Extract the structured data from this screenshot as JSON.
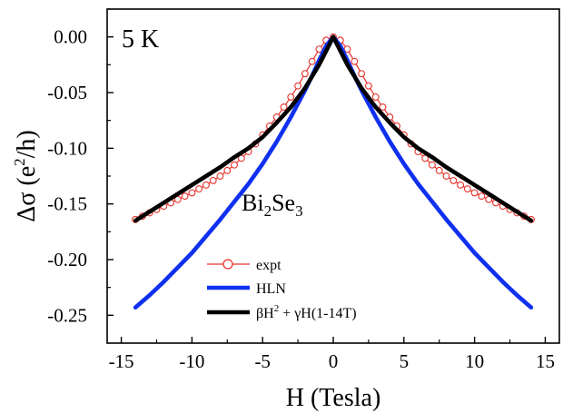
{
  "chart_data": {
    "type": "line",
    "xlabel": "H (Tesla)",
    "ylabel": {
      "prefix": "Δσ (e",
      "sup": "2",
      "suffix": "/h)"
    },
    "xlim": [
      -16,
      16
    ],
    "ylim": [
      -0.275,
      0.025
    ],
    "xticks": [
      -15,
      -10,
      -5,
      0,
      5,
      10,
      15
    ],
    "xtick_labels": [
      "-15",
      "-10",
      "-5",
      "0",
      "5",
      "10",
      "15"
    ],
    "yticks": [
      0.0,
      -0.05,
      -0.1,
      -0.15,
      -0.2,
      -0.25
    ],
    "ytick_labels": [
      "0.00",
      "-0.05",
      "-0.10",
      "-0.15",
      "-0.20",
      "-0.25"
    ],
    "annotations": {
      "temperature": "5 K",
      "material": {
        "a": "Bi",
        "b": "2",
        "c": "Se",
        "d": "3"
      }
    },
    "legend_position": "lower-center",
    "series": [
      {
        "name": "expt",
        "style": "open-circles-line",
        "color": "#e8302a",
        "x": [
          -14,
          -13.5,
          -13,
          -12.5,
          -12,
          -11.5,
          -11,
          -10.5,
          -10,
          -9.5,
          -9,
          -8.5,
          -8,
          -7.5,
          -7,
          -6.5,
          -6,
          -5.5,
          -5,
          -4.5,
          -4,
          -3.5,
          -3,
          -2.5,
          -2,
          -1.5,
          -1,
          -0.5,
          0,
          0.5,
          1,
          1.5,
          2,
          2.5,
          3,
          3.5,
          4,
          4.5,
          5,
          5.5,
          6,
          6.5,
          7,
          7.5,
          8,
          8.5,
          9,
          9.5,
          10,
          10.5,
          11,
          11.5,
          12,
          12.5,
          13,
          13.5,
          14
        ],
        "y": [
          -0.164,
          -0.161,
          -0.158,
          -0.155,
          -0.152,
          -0.149,
          -0.146,
          -0.143,
          -0.14,
          -0.1365,
          -0.133,
          -0.129,
          -0.125,
          -0.12,
          -0.115,
          -0.109,
          -0.103,
          -0.096,
          -0.088,
          -0.08,
          -0.072,
          -0.063,
          -0.054,
          -0.044,
          -0.033,
          -0.022,
          -0.011,
          -0.003,
          0.0,
          -0.003,
          -0.011,
          -0.022,
          -0.033,
          -0.044,
          -0.054,
          -0.063,
          -0.072,
          -0.08,
          -0.088,
          -0.096,
          -0.103,
          -0.109,
          -0.115,
          -0.12,
          -0.125,
          -0.129,
          -0.133,
          -0.1365,
          -0.14,
          -0.143,
          -0.146,
          -0.149,
          -0.152,
          -0.155,
          -0.158,
          -0.161,
          -0.164
        ]
      },
      {
        "name": "HLN",
        "style": "line",
        "color": "#1030f0",
        "x": [
          -14,
          -13,
          -12,
          -11,
          -10,
          -9,
          -8,
          -7,
          -6,
          -5,
          -4,
          -3,
          -2,
          -1.5,
          -1,
          -0.5,
          0,
          0.5,
          1,
          1.5,
          2,
          3,
          4,
          5,
          6,
          7,
          8,
          9,
          10,
          11,
          12,
          13,
          14
        ],
        "y": [
          -0.243,
          -0.232,
          -0.22,
          -0.207,
          -0.194,
          -0.179,
          -0.164,
          -0.148,
          -0.132,
          -0.114,
          -0.094,
          -0.072,
          -0.048,
          -0.035,
          -0.021,
          -0.008,
          0.0,
          -0.008,
          -0.021,
          -0.035,
          -0.048,
          -0.072,
          -0.094,
          -0.114,
          -0.132,
          -0.148,
          -0.164,
          -0.179,
          -0.194,
          -0.207,
          -0.22,
          -0.232,
          -0.243
        ]
      },
      {
        "name": "βH² + γH(1-14T)",
        "legend": {
          "a": "βH",
          "b": "2",
          "c": " + γH(1-14T)"
        },
        "style": "line",
        "color": "#000000",
        "x": [
          -14,
          -13,
          -12,
          -11,
          -10,
          -9,
          -8,
          -7,
          -6,
          -5,
          -4,
          -3,
          -2,
          -1,
          0,
          1,
          2,
          3,
          4,
          5,
          6,
          7,
          8,
          9,
          10,
          11,
          12,
          13,
          14
        ],
        "y": [
          -0.165,
          -0.157,
          -0.149,
          -0.141,
          -0.133,
          -0.125,
          -0.117,
          -0.108,
          -0.1,
          -0.09,
          -0.077,
          -0.063,
          -0.046,
          -0.025,
          0.0,
          -0.025,
          -0.046,
          -0.063,
          -0.077,
          -0.09,
          -0.1,
          -0.108,
          -0.117,
          -0.125,
          -0.133,
          -0.141,
          -0.149,
          -0.157,
          -0.165
        ]
      }
    ]
  }
}
